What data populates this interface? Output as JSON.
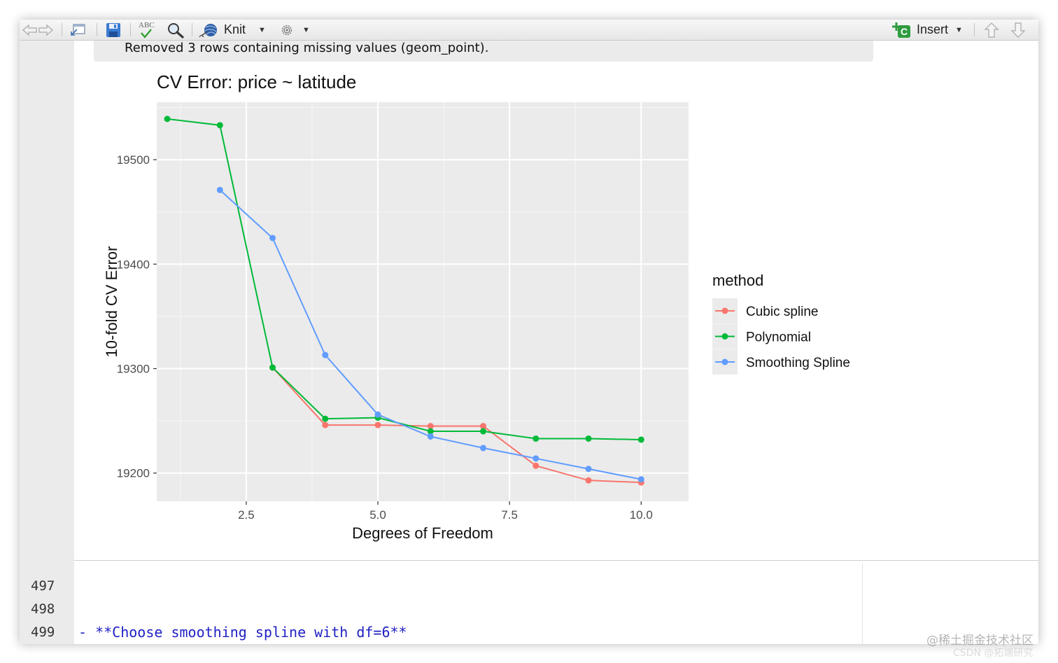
{
  "toolbar": {
    "spellcheck_label": "ABC",
    "knit_label": "Knit",
    "insert_label": "Insert",
    "insert_badge": "C"
  },
  "console": {
    "message": "Removed 3 rows containing missing values (geom_point)."
  },
  "editor": {
    "line_numbers": [
      "497",
      "498",
      "499"
    ],
    "lines": [
      "",
      "",
      "- **Choose smoothing spline with df=6**"
    ]
  },
  "watermark": {
    "text": "@稀土掘金技术社区",
    "text2": "CSDN @拓端研究"
  },
  "chart_data": {
    "type": "line",
    "title": "CV Error: price ~ latitude",
    "xlabel": "Degrees of Freedom",
    "ylabel": "10-fold CV Error",
    "xlim": [
      0.8,
      10.9
    ],
    "ylim": [
      19173,
      19555
    ],
    "x_ticks": [
      2.5,
      5.0,
      7.5,
      10.0
    ],
    "x_tick_labels": [
      "2.5",
      "5.0",
      "7.5",
      "10.0"
    ],
    "y_ticks": [
      19200,
      19300,
      19400,
      19500
    ],
    "y_tick_labels": [
      "19200",
      "19300",
      "19400",
      "19500"
    ],
    "grid": true,
    "legend_title": "method",
    "legend_position": "right",
    "series": [
      {
        "name": "Cubic spline",
        "color": "#F8766D",
        "x": [
          3,
          4,
          5,
          6,
          7,
          8,
          9,
          10
        ],
        "values": [
          19301,
          19246,
          19246,
          19245,
          19245,
          19207,
          19193,
          19191
        ]
      },
      {
        "name": "Polynomial",
        "color": "#00BA38",
        "x": [
          1,
          2,
          3,
          4,
          5,
          6,
          7,
          8,
          9,
          10
        ],
        "values": [
          19539,
          19533,
          19301,
          19252,
          19253,
          19240,
          19240,
          19233,
          19233,
          19232
        ]
      },
      {
        "name": "Smoothing Spline",
        "color": "#619CFF",
        "x": [
          2,
          3,
          4,
          5,
          6,
          7,
          8,
          9,
          10
        ],
        "values": [
          19471,
          19425,
          19313,
          19256,
          19235,
          19224,
          19214,
          19204,
          19194
        ]
      }
    ]
  }
}
